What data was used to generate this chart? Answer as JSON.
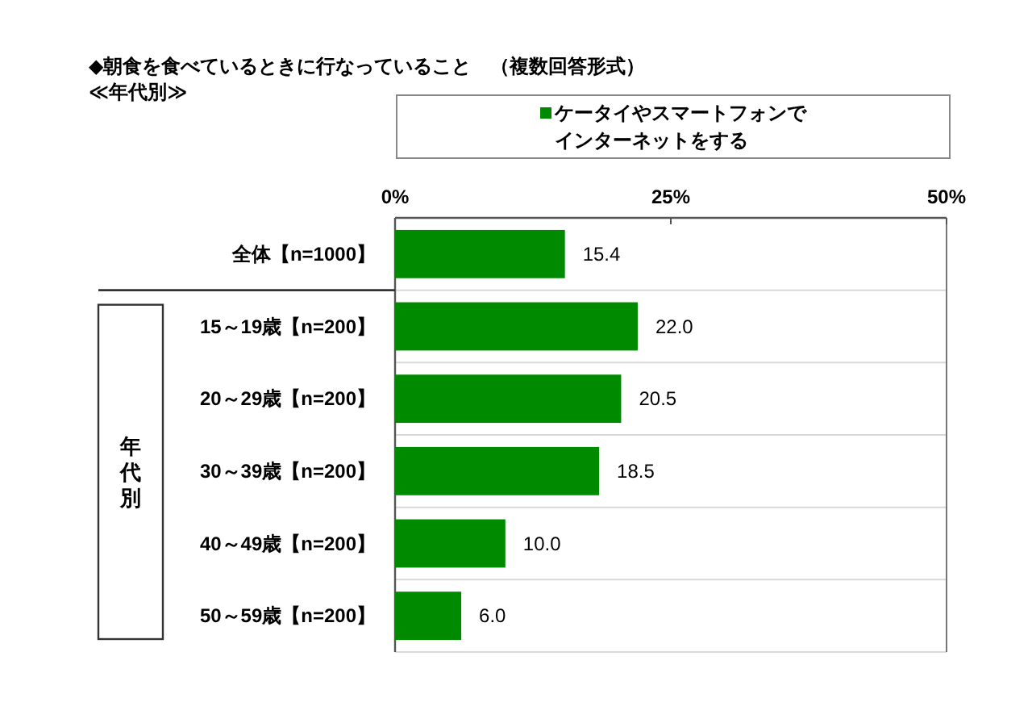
{
  "chart_data": {
    "type": "bar",
    "orientation": "horizontal",
    "title": "◆朝食を食べているときに行なっていること　（複数回答形式）",
    "subtitle": "≪年代別≫",
    "categories": [
      "全体【n=1000】",
      "15～19歳【n=200】",
      "20～29歳【n=200】",
      "30～39歳【n=200】",
      "40～49歳【n=200】",
      "50～59歳【n=200】"
    ],
    "series": [
      {
        "name": "ケータイやスマートフォンでインターネットをする",
        "color": "#008a00",
        "values": [
          15.4,
          22.0,
          20.5,
          18.5,
          10.0,
          6.0
        ],
        "value_labels": [
          "15.4",
          "22.0",
          "20.5",
          "18.5",
          "10.0",
          "6.0"
        ]
      }
    ],
    "xlim": [
      0,
      50
    ],
    "xticks": [
      {
        "value": 0,
        "label": "0%"
      },
      {
        "value": 25,
        "label": "25%"
      },
      {
        "value": 50,
        "label": "50%"
      }
    ],
    "grid": "y",
    "legend": "top",
    "annotations": [
      "年代別"
    ]
  }
}
